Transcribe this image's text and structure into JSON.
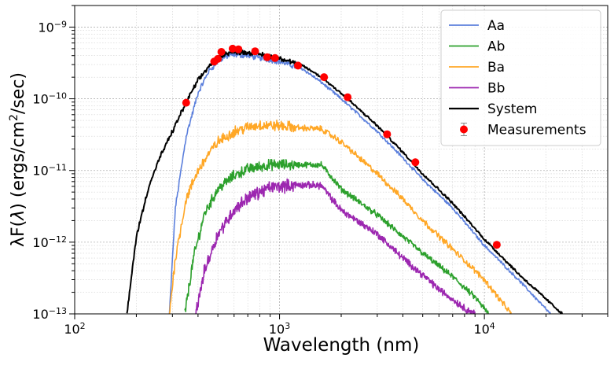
{
  "chart_data": {
    "type": "line",
    "xlabel": "Wavelength (nm)",
    "ylabel_parts": {
      "pre": "λF(",
      "sym": "λ",
      "mid": ") (ergs/cm",
      "sup": "2",
      "post": "/sec)"
    },
    "xscale": "log",
    "yscale": "log",
    "xlim": [
      100,
      40000
    ],
    "ylim": [
      1e-13,
      2e-09
    ],
    "x_ticks": [
      {
        "value": 100,
        "base": "10",
        "exp": "2"
      },
      {
        "value": 1000,
        "base": "10",
        "exp": "3"
      },
      {
        "value": 10000,
        "base": "10",
        "exp": "4"
      }
    ],
    "y_ticks": [
      {
        "value": 1e-13,
        "base": "10",
        "exp": "−13"
      },
      {
        "value": 1e-12,
        "base": "10",
        "exp": "−12"
      },
      {
        "value": 1e-11,
        "base": "10",
        "exp": "−11"
      },
      {
        "value": 1e-10,
        "base": "10",
        "exp": "−10"
      },
      {
        "value": 1e-09,
        "base": "10",
        "exp": "−9"
      }
    ],
    "grid": true,
    "legend_position": "top-right",
    "series": [
      {
        "name": "Aa",
        "color": "#5b7fdc",
        "noise": 0.06,
        "points": [
          [
            290,
            1e-13
          ],
          [
            310,
            3e-12
          ],
          [
            350,
            3e-11
          ],
          [
            400,
            1.2e-10
          ],
          [
            450,
            2.4e-10
          ],
          [
            500,
            3.3e-10
          ],
          [
            550,
            3.9e-10
          ],
          [
            600,
            4.1e-10
          ],
          [
            700,
            4e-10
          ],
          [
            800,
            3.7e-10
          ],
          [
            1000,
            3.3e-10
          ],
          [
            1300,
            2.6e-10
          ],
          [
            1600,
            1.7e-10
          ],
          [
            2000,
            1e-10
          ],
          [
            3000,
            3.5e-11
          ],
          [
            4000,
            1.5e-11
          ],
          [
            5000,
            7.5e-12
          ],
          [
            7000,
            3e-12
          ],
          [
            10000,
            9e-13
          ],
          [
            15000,
            2.8e-13
          ],
          [
            21000,
            1e-13
          ]
        ]
      },
      {
        "name": "Ab",
        "color": "#2ca02c",
        "noise": 0.12,
        "points": [
          [
            345,
            1e-13
          ],
          [
            380,
            6e-13
          ],
          [
            430,
            2.5e-12
          ],
          [
            500,
            5.5e-12
          ],
          [
            600,
            8.5e-12
          ],
          [
            700,
            1.05e-11
          ],
          [
            900,
            1.2e-11
          ],
          [
            1200,
            1.2e-11
          ],
          [
            1600,
            1.2e-11
          ],
          [
            1800,
            8e-12
          ],
          [
            2000,
            5.5e-12
          ],
          [
            3000,
            2.4e-12
          ],
          [
            4000,
            1.2e-12
          ],
          [
            5000,
            7e-13
          ],
          [
            7000,
            3.3e-13
          ],
          [
            9000,
            1.7e-13
          ],
          [
            10500,
            1e-13
          ]
        ]
      },
      {
        "name": "Ba",
        "color": "#ffa726",
        "noise": 0.12,
        "points": [
          [
            290,
            1e-13
          ],
          [
            310,
            6e-13
          ],
          [
            350,
            4e-12
          ],
          [
            400,
            1e-11
          ],
          [
            450,
            1.7e-11
          ],
          [
            500,
            2.5e-11
          ],
          [
            600,
            3.5e-11
          ],
          [
            700,
            4e-11
          ],
          [
            800,
            4.3e-11
          ],
          [
            1000,
            4.2e-11
          ],
          [
            1300,
            3.9e-11
          ],
          [
            1600,
            3.8e-11
          ],
          [
            2000,
            2.5e-11
          ],
          [
            3000,
            9e-12
          ],
          [
            4000,
            4e-12
          ],
          [
            5000,
            2e-12
          ],
          [
            7000,
            8e-13
          ],
          [
            10000,
            3e-13
          ],
          [
            13500,
            1e-13
          ]
        ]
      },
      {
        "name": "Bb",
        "color": "#9c27b0",
        "noise": 0.14,
        "points": [
          [
            390,
            1e-13
          ],
          [
            430,
            4e-13
          ],
          [
            500,
            1.3e-12
          ],
          [
            600,
            2.8e-12
          ],
          [
            700,
            4.2e-12
          ],
          [
            900,
            5.8e-12
          ],
          [
            1200,
            6.3e-12
          ],
          [
            1600,
            6.2e-12
          ],
          [
            1800,
            4e-12
          ],
          [
            2000,
            2.8e-12
          ],
          [
            3000,
            1.3e-12
          ],
          [
            4000,
            6e-13
          ],
          [
            5000,
            3.5e-13
          ],
          [
            6000,
            2.2e-13
          ],
          [
            8000,
            1.2e-13
          ],
          [
            9000,
            1e-13
          ]
        ]
      },
      {
        "name": "System",
        "color": "#000000",
        "noise": 0.05,
        "points": [
          [
            180,
            1e-13
          ],
          [
            200,
            1.2e-12
          ],
          [
            230,
            6e-12
          ],
          [
            260,
            1.5e-11
          ],
          [
            300,
            3.5e-11
          ],
          [
            350,
            9e-11
          ],
          [
            400,
            1.8e-10
          ],
          [
            450,
            2.8e-10
          ],
          [
            500,
            3.8e-10
          ],
          [
            550,
            4.3e-10
          ],
          [
            600,
            4.5e-10
          ],
          [
            700,
            4.4e-10
          ],
          [
            800,
            4.2e-10
          ],
          [
            1000,
            3.7e-10
          ],
          [
            1300,
            2.9e-10
          ],
          [
            1600,
            2e-10
          ],
          [
            2000,
            1.2e-10
          ],
          [
            3000,
            4.2e-11
          ],
          [
            4000,
            1.8e-11
          ],
          [
            5000,
            9e-12
          ],
          [
            7000,
            3.5e-12
          ],
          [
            10000,
            1.1e-12
          ],
          [
            15000,
            3.4e-13
          ],
          [
            24000,
            1e-13
          ]
        ]
      }
    ],
    "measurements": {
      "name": "Measurements",
      "color": "#ff0000",
      "points": [
        [
          350,
          8.8e-11
        ],
        [
          480,
          3.3e-10
        ],
        [
          500,
          3.6e-10
        ],
        [
          520,
          4.5e-10
        ],
        [
          590,
          5e-10
        ],
        [
          630,
          4.9e-10
        ],
        [
          760,
          4.6e-10
        ],
        [
          870,
          3.8e-10
        ],
        [
          950,
          3.7e-10
        ],
        [
          1230,
          2.9e-10
        ],
        [
          1650,
          2e-10
        ],
        [
          2150,
          1.05e-10
        ],
        [
          3350,
          3.2e-11
        ],
        [
          4600,
          1.3e-11
        ],
        [
          11500,
          9.2e-13
        ]
      ]
    }
  }
}
